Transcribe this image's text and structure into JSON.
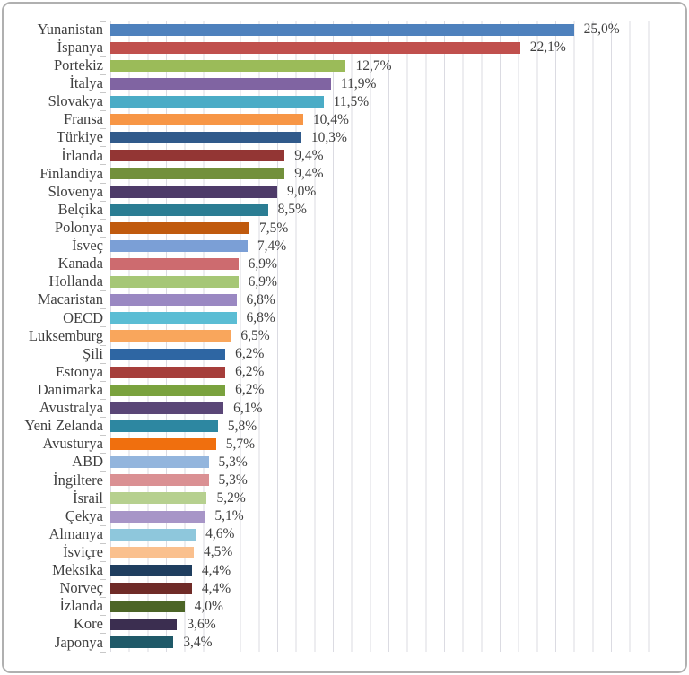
{
  "chart_data": {
    "type": "bar",
    "orientation": "horizontal",
    "title": "",
    "xlabel": "",
    "ylabel": "",
    "xlim": [
      0,
      30
    ],
    "grid_step_percent": 1,
    "grid_visible": true,
    "legend": "none",
    "value_format": "turkish-decimal-comma-percent",
    "bars": [
      {
        "label": "Yunanistan",
        "value": 25.0,
        "display": "25,0%",
        "color": "#4e81bd"
      },
      {
        "label": "İspanya",
        "value": 22.1,
        "display": "22,1%",
        "color": "#c0504d"
      },
      {
        "label": "Portekiz",
        "value": 12.7,
        "display": "12,7%",
        "color": "#9bbb59"
      },
      {
        "label": "İtalya",
        "value": 11.9,
        "display": "11,9%",
        "color": "#8064a2"
      },
      {
        "label": "Slovakya",
        "value": 11.5,
        "display": "11,5%",
        "color": "#4bacc6"
      },
      {
        "label": "Fransa",
        "value": 10.4,
        "display": "10,4%",
        "color": "#f79646"
      },
      {
        "label": "Türkiye",
        "value": 10.3,
        "display": "10,3%",
        "color": "#305a8b"
      },
      {
        "label": "İrlanda",
        "value": 9.4,
        "display": "9,4%",
        "color": "#933634"
      },
      {
        "label": "Finlandiya",
        "value": 9.4,
        "display": "9,4%",
        "color": "#72903b"
      },
      {
        "label": "Slovenya",
        "value": 9.0,
        "display": "9,0%",
        "color": "#4e3b69"
      },
      {
        "label": "Belçika",
        "value": 8.5,
        "display": "8,5%",
        "color": "#2b7d93"
      },
      {
        "label": "Polonya",
        "value": 7.5,
        "display": "7,5%",
        "color": "#c05a0e"
      },
      {
        "label": "İsveç",
        "value": 7.4,
        "display": "7,4%",
        "color": "#7b9fd6"
      },
      {
        "label": "Kanada",
        "value": 6.9,
        "display": "6,9%",
        "color": "#cd6b6f"
      },
      {
        "label": "Hollanda",
        "value": 6.9,
        "display": "6,9%",
        "color": "#a6c776"
      },
      {
        "label": "Macaristan",
        "value": 6.8,
        "display": "6,8%",
        "color": "#9a88c2"
      },
      {
        "label": "OECD",
        "value": 6.8,
        "display": "6,8%",
        "color": "#5bbdd4"
      },
      {
        "label": "Luksemburg",
        "value": 6.5,
        "display": "6,5%",
        "color": "#f9a65c"
      },
      {
        "label": "Şili",
        "value": 6.2,
        "display": "6,2%",
        "color": "#2e66a3"
      },
      {
        "label": "Estonya",
        "value": 6.2,
        "display": "6,2%",
        "color": "#a63e3b"
      },
      {
        "label": "Danimarka",
        "value": 6.2,
        "display": "6,2%",
        "color": "#7aa23e"
      },
      {
        "label": "Avustralya",
        "value": 6.1,
        "display": "6,1%",
        "color": "#5a4677"
      },
      {
        "label": "Yeni Zelanda",
        "value": 5.8,
        "display": "5,8%",
        "color": "#2d87a1"
      },
      {
        "label": "Avusturya",
        "value": 5.7,
        "display": "5,7%",
        "color": "#f06f0e"
      },
      {
        "label": "ABD",
        "value": 5.3,
        "display": "5,3%",
        "color": "#93b5dd"
      },
      {
        "label": "İngiltere",
        "value": 5.3,
        "display": "5,3%",
        "color": "#da9093"
      },
      {
        "label": "İsrail",
        "value": 5.2,
        "display": "5,2%",
        "color": "#b6d08f"
      },
      {
        "label": "Çekya",
        "value": 5.1,
        "display": "5,1%",
        "color": "#a795c7"
      },
      {
        "label": "Almanya",
        "value": 4.6,
        "display": "4,6%",
        "color": "#8ec7dc"
      },
      {
        "label": "İsviçre",
        "value": 4.5,
        "display": "4,5%",
        "color": "#fac08e"
      },
      {
        "label": "Meksika",
        "value": 4.4,
        "display": "4,4%",
        "color": "#1f3e5f"
      },
      {
        "label": "Norveç",
        "value": 4.4,
        "display": "4,4%",
        "color": "#6f2b28"
      },
      {
        "label": "İzlanda",
        "value": 4.0,
        "display": "4,0%",
        "color": "#4c6527"
      },
      {
        "label": "Kore",
        "value": 3.6,
        "display": "3,6%",
        "color": "#3b2e50"
      },
      {
        "label": "Japonya",
        "value": 3.4,
        "display": "3,4%",
        "color": "#1f5968"
      }
    ]
  },
  "style": {
    "frame_border_color": "#b0b0b0",
    "gridline_color": "#dbdbe2",
    "tick_color": "#c8c8c8",
    "text_color": "#3f3f3f",
    "background": "#ffffff"
  }
}
